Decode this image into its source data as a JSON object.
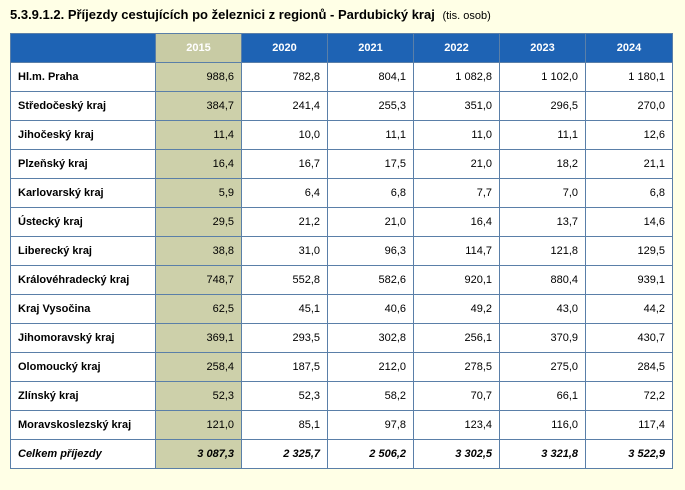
{
  "title": {
    "text": "5.3.9.1.2. Příjezdy cestujících po železnici z regionů - Pardubický kraj",
    "unit": "(tis. osob)"
  },
  "table": {
    "corner": "",
    "columns": [
      "2015",
      "2020",
      "2021",
      "2022",
      "2023",
      "2024"
    ],
    "rows": [
      {
        "region": "Hl.m. Praha",
        "values": [
          "988,6",
          "782,8",
          "804,1",
          "1 082,8",
          "1 102,0",
          "1 180,1"
        ]
      },
      {
        "region": "Středočeský kraj",
        "values": [
          "384,7",
          "241,4",
          "255,3",
          "351,0",
          "296,5",
          "270,0"
        ]
      },
      {
        "region": "Jihočeský kraj",
        "values": [
          "11,4",
          "10,0",
          "11,1",
          "11,0",
          "11,1",
          "12,6"
        ]
      },
      {
        "region": "Plzeňský kraj",
        "values": [
          "16,4",
          "16,7",
          "17,5",
          "21,0",
          "18,2",
          "21,1"
        ]
      },
      {
        "region": "Karlovarský kraj",
        "values": [
          "5,9",
          "6,4",
          "6,8",
          "7,7",
          "7,0",
          "6,8"
        ]
      },
      {
        "region": "Ústecký kraj",
        "values": [
          "29,5",
          "21,2",
          "21,0",
          "16,4",
          "13,7",
          "14,6"
        ]
      },
      {
        "region": "Liberecký kraj",
        "values": [
          "38,8",
          "31,0",
          "96,3",
          "114,7",
          "121,8",
          "129,5"
        ]
      },
      {
        "region": "Královéhradecký kraj",
        "values": [
          "748,7",
          "552,8",
          "582,6",
          "920,1",
          "880,4",
          "939,1"
        ]
      },
      {
        "region": "Kraj Vysočina",
        "values": [
          "62,5",
          "45,1",
          "40,6",
          "49,2",
          "43,0",
          "44,2"
        ]
      },
      {
        "region": "Jihomoravský kraj",
        "values": [
          "369,1",
          "293,5",
          "302,8",
          "256,1",
          "370,9",
          "430,7"
        ]
      },
      {
        "region": "Olomoucký kraj",
        "values": [
          "258,4",
          "187,5",
          "212,0",
          "278,5",
          "275,0",
          "284,5"
        ]
      },
      {
        "region": "Zlínský kraj",
        "values": [
          "52,3",
          "52,3",
          "58,2",
          "70,7",
          "66,1",
          "72,2"
        ]
      },
      {
        "region": "Moravskoslezský kraj",
        "values": [
          "121,0",
          "85,1",
          "97,8",
          "123,4",
          "116,0",
          "117,4"
        ]
      }
    ],
    "total": {
      "region": "Celkem příjezdy",
      "values": [
        "3 087,3",
        "2 325,7",
        "2 506,2",
        "3 302,5",
        "3 321,8",
        "3 522,9"
      ]
    }
  },
  "colors": {
    "header_blue": "#1e63b4",
    "highlight_column": "#cdd0aa",
    "page_background": "#ffffe6"
  }
}
